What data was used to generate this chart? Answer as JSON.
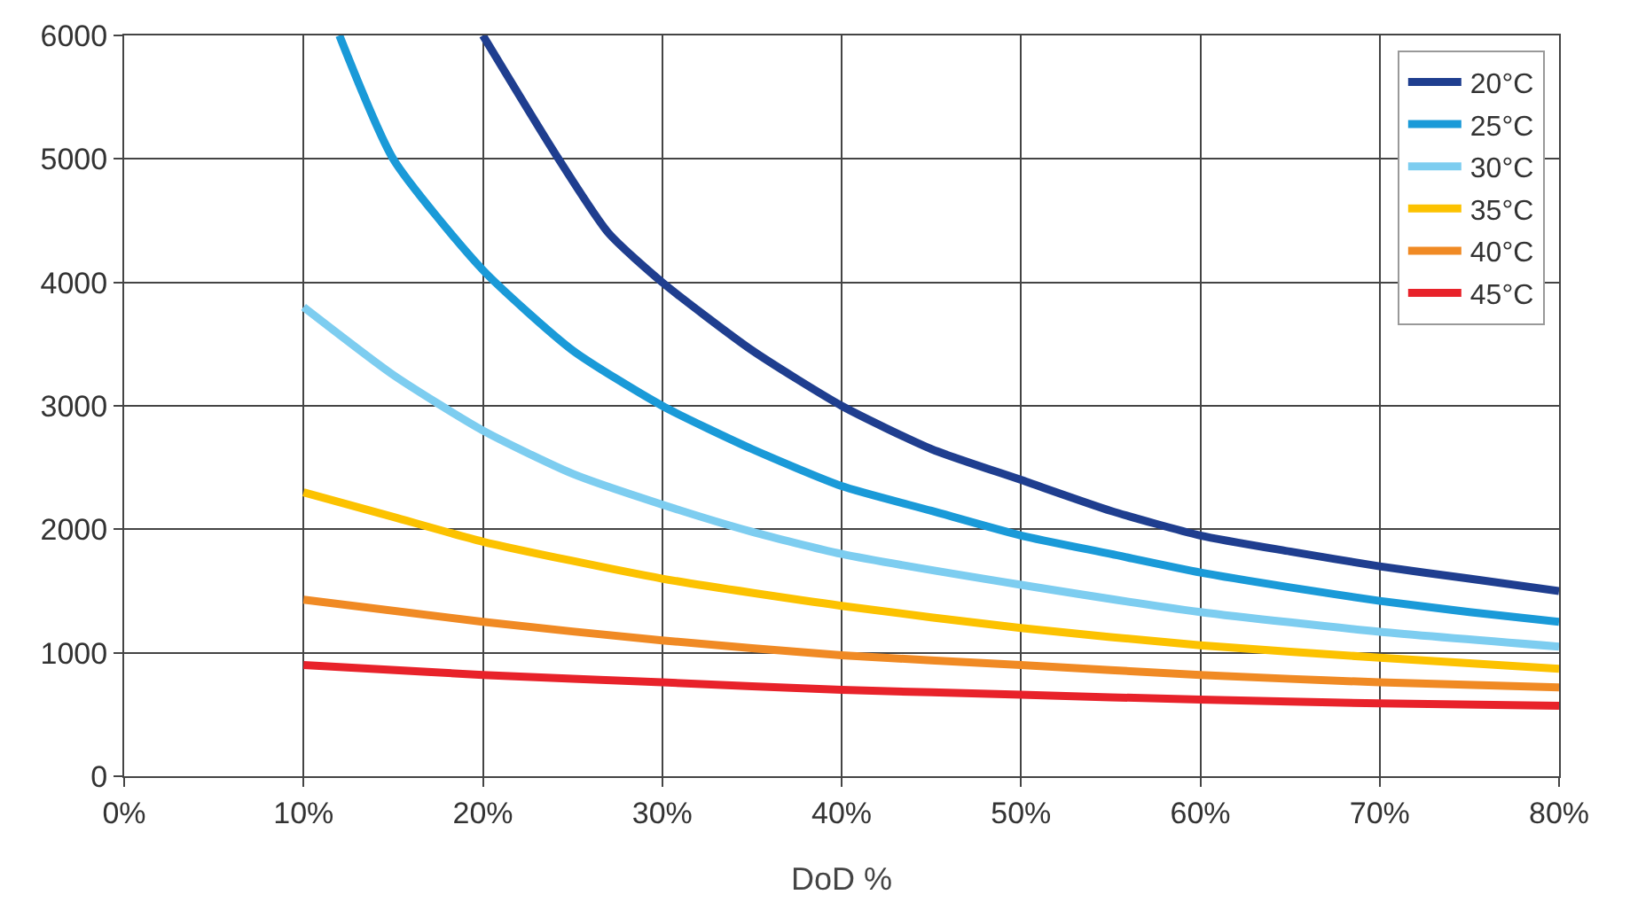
{
  "chart_data": {
    "type": "line",
    "xlabel": "DoD %",
    "series": [
      {
        "name": "20°C",
        "color": "#1f3e8f",
        "x": [
          20,
          24,
          27,
          30,
          35,
          40,
          45,
          50,
          55,
          60,
          65,
          70,
          75,
          80
        ],
        "values": [
          6000,
          5050,
          4400,
          4000,
          3450,
          3000,
          2650,
          2400,
          2150,
          1950,
          1820,
          1700,
          1600,
          1500
        ]
      },
      {
        "name": "25°C",
        "color": "#1a9ad8",
        "x": [
          12,
          15,
          20,
          25,
          30,
          35,
          40,
          45,
          50,
          55,
          60,
          65,
          70,
          75,
          80
        ],
        "values": [
          6000,
          5000,
          4100,
          3450,
          3000,
          2650,
          2350,
          2150,
          1950,
          1800,
          1650,
          1530,
          1420,
          1330,
          1250
        ]
      },
      {
        "name": "30°C",
        "color": "#7dcdf0",
        "x": [
          10,
          15,
          20,
          25,
          30,
          35,
          40,
          50,
          60,
          70,
          80
        ],
        "values": [
          3800,
          3250,
          2800,
          2450,
          2200,
          1980,
          1800,
          1550,
          1330,
          1170,
          1050
        ]
      },
      {
        "name": "35°C",
        "color": "#fcc200",
        "x": [
          10,
          15,
          20,
          30,
          40,
          50,
          60,
          70,
          80
        ],
        "values": [
          2300,
          2100,
          1900,
          1600,
          1380,
          1200,
          1060,
          960,
          870
        ]
      },
      {
        "name": "40°C",
        "color": "#f08a24",
        "x": [
          10,
          20,
          30,
          40,
          50,
          60,
          70,
          80
        ],
        "values": [
          1430,
          1250,
          1100,
          980,
          900,
          820,
          760,
          720
        ]
      },
      {
        "name": "45°C",
        "color": "#e8222a",
        "x": [
          10,
          20,
          30,
          40,
          50,
          60,
          70,
          80
        ],
        "values": [
          900,
          820,
          760,
          700,
          660,
          620,
          590,
          570
        ]
      }
    ],
    "xlim": [
      0,
      80
    ],
    "xticks": [
      {
        "value": 0,
        "label": "0%"
      },
      {
        "value": 10,
        "label": "10%"
      },
      {
        "value": 20,
        "label": "20%"
      },
      {
        "value": 30,
        "label": "30%"
      },
      {
        "value": 40,
        "label": "40%"
      },
      {
        "value": 50,
        "label": "50%"
      },
      {
        "value": 60,
        "label": "60%"
      },
      {
        "value": 70,
        "label": "70%"
      },
      {
        "value": 80,
        "label": "80%"
      }
    ],
    "ylim": [
      0,
      6000
    ],
    "yticks": [
      0,
      1000,
      2000,
      3000,
      4000,
      5000,
      6000
    ],
    "grid": true,
    "legend": "top right",
    "marker": "none",
    "line_style": "solid"
  }
}
